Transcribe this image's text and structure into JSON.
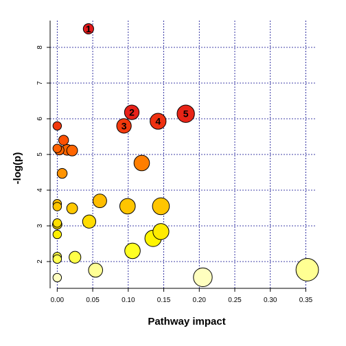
{
  "chart_data": {
    "type": "scatter",
    "xlabel": "Pathway impact",
    "ylabel": "-log(p)",
    "xlim": [
      -0.01,
      0.365
    ],
    "ylim": [
      1.25,
      8.75
    ],
    "x_ticks": [
      "0.00",
      "0.05",
      "0.10",
      "0.15",
      "0.20",
      "0.25",
      "0.30",
      "0.35"
    ],
    "y_ticks": [
      "2",
      "3",
      "4",
      "5",
      "6",
      "7",
      "8"
    ],
    "grid": true,
    "grid_color": "#00008b",
    "color_scale": [
      "#ffffcc",
      "#ffff00",
      "#ffcc00",
      "#ff9900",
      "#ff5500",
      "#e31a1c"
    ],
    "points": [
      {
        "x": 0.044,
        "y": 8.52,
        "label": "1",
        "impact_size": 0.18
      },
      {
        "x": 0.105,
        "y": 6.18,
        "label": "2",
        "impact_size": 0.36
      },
      {
        "x": 0.094,
        "y": 5.8,
        "label": "3",
        "impact_size": 0.36
      },
      {
        "x": 0.142,
        "y": 5.93,
        "label": "4",
        "impact_size": 0.42
      },
      {
        "x": 0.181,
        "y": 6.14,
        "label": "5",
        "impact_size": 0.48
      },
      {
        "x": 0.0,
        "y": 5.8,
        "label": "",
        "impact_size": 0.1
      },
      {
        "x": 0.009,
        "y": 5.4,
        "label": "",
        "impact_size": 0.16
      },
      {
        "x": 0.0,
        "y": 5.17,
        "label": "",
        "impact_size": 0.1
      },
      {
        "x": 0.003,
        "y": 5.12,
        "label": "",
        "impact_size": 0.14
      },
      {
        "x": 0.014,
        "y": 5.13,
        "label": "",
        "impact_size": 0.2
      },
      {
        "x": 0.021,
        "y": 5.11,
        "label": "",
        "impact_size": 0.2
      },
      {
        "x": 0.119,
        "y": 4.76,
        "label": "",
        "impact_size": 0.4
      },
      {
        "x": 0.007,
        "y": 4.47,
        "label": "",
        "impact_size": 0.16
      },
      {
        "x": 0.0,
        "y": 3.62,
        "label": "",
        "impact_size": 0.1
      },
      {
        "x": 0.0,
        "y": 3.54,
        "label": "",
        "impact_size": 0.1
      },
      {
        "x": 0.021,
        "y": 3.49,
        "label": "",
        "impact_size": 0.2
      },
      {
        "x": 0.06,
        "y": 3.7,
        "label": "",
        "impact_size": 0.32
      },
      {
        "x": 0.099,
        "y": 3.55,
        "label": "",
        "impact_size": 0.4
      },
      {
        "x": 0.146,
        "y": 3.55,
        "label": "",
        "impact_size": 0.46
      },
      {
        "x": 0.0,
        "y": 3.08,
        "label": "",
        "impact_size": 0.1
      },
      {
        "x": 0.0,
        "y": 3.04,
        "label": "",
        "impact_size": 0.14
      },
      {
        "x": 0.045,
        "y": 3.12,
        "label": "",
        "impact_size": 0.3
      },
      {
        "x": 0.146,
        "y": 2.84,
        "label": "",
        "impact_size": 0.42
      },
      {
        "x": 0.0,
        "y": 2.76,
        "label": "",
        "impact_size": 0.1
      },
      {
        "x": 0.135,
        "y": 2.65,
        "label": "",
        "impact_size": 0.44
      },
      {
        "x": 0.106,
        "y": 2.3,
        "label": "",
        "impact_size": 0.4
      },
      {
        "x": 0.0,
        "y": 2.14,
        "label": "",
        "impact_size": 0.1
      },
      {
        "x": 0.0,
        "y": 2.07,
        "label": "",
        "impact_size": 0.1
      },
      {
        "x": 0.025,
        "y": 2.12,
        "label": "",
        "impact_size": 0.24
      },
      {
        "x": 0.054,
        "y": 1.76,
        "label": "",
        "impact_size": 0.34
      },
      {
        "x": 0.0,
        "y": 1.55,
        "label": "",
        "impact_size": 0.1
      },
      {
        "x": 0.205,
        "y": 1.56,
        "label": "",
        "impact_size": 0.54
      },
      {
        "x": 0.352,
        "y": 1.77,
        "label": "",
        "impact_size": 0.7
      }
    ]
  }
}
